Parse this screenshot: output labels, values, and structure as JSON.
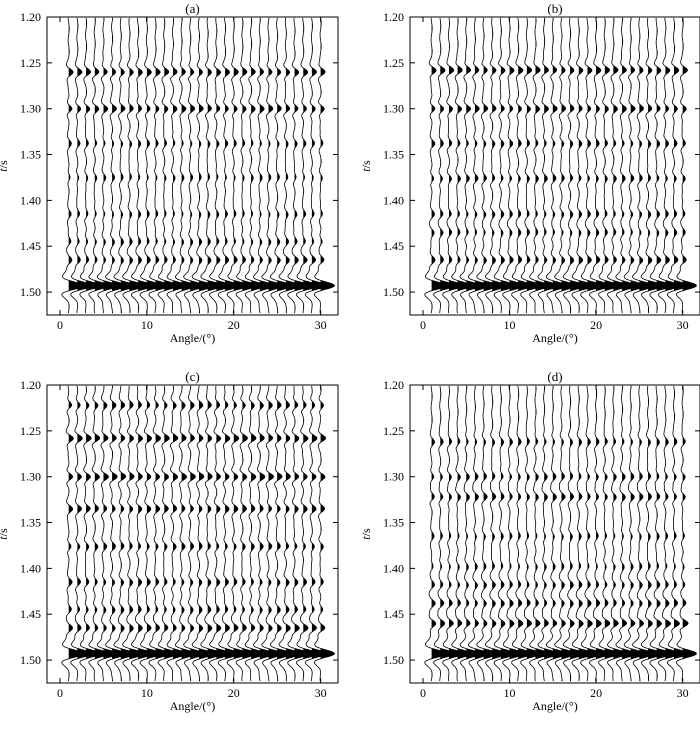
{
  "chart_data": [
    {
      "type": "seismic-wiggle",
      "panel_label": "(a)",
      "xlabel": "Angle/(°)",
      "ylabel": "t/s",
      "xlim": [
        -1.5,
        32
      ],
      "ylim": [
        1.2,
        1.525
      ],
      "xticks": [
        0,
        10,
        20,
        30
      ],
      "yticks": [
        1.2,
        1.25,
        1.3,
        1.35,
        1.4,
        1.45,
        1.5
      ],
      "traces_x": [
        1,
        2,
        3,
        4,
        5,
        6,
        7,
        8,
        9,
        10,
        11,
        12,
        13,
        14,
        15,
        16,
        17,
        18,
        19,
        20,
        21,
        22,
        23,
        24,
        25,
        26,
        27,
        28,
        29,
        30
      ],
      "events": [
        {
          "t": 1.26,
          "amp": 0.85,
          "trend": 0.0
        },
        {
          "t": 1.3,
          "amp": 0.8,
          "trend": 0.0
        },
        {
          "t": 1.338,
          "amp": 0.45,
          "trend": 0.0
        },
        {
          "t": 1.375,
          "amp": 0.4,
          "trend": 0.0
        },
        {
          "t": 1.415,
          "amp": 0.4,
          "trend": 0.0
        },
        {
          "t": 1.445,
          "amp": 0.45,
          "trend": 0.0
        },
        {
          "t": 1.465,
          "amp": 0.55,
          "trend": 0.3
        },
        {
          "t": 1.493,
          "amp": 3.0,
          "trend": 0.0
        }
      ]
    },
    {
      "type": "seismic-wiggle",
      "panel_label": "(b)",
      "xlabel": "Angle/(°)",
      "ylabel": "t/s",
      "xlim": [
        -1.5,
        32
      ],
      "ylim": [
        1.2,
        1.525
      ],
      "xticks": [
        0,
        10,
        20,
        30
      ],
      "yticks": [
        1.2,
        1.25,
        1.3,
        1.35,
        1.4,
        1.45,
        1.5
      ],
      "traces_x": [
        1,
        2,
        3,
        4,
        5,
        6,
        7,
        8,
        9,
        10,
        11,
        12,
        13,
        14,
        15,
        16,
        17,
        18,
        19,
        20,
        21,
        22,
        23,
        24,
        25,
        26,
        27,
        28,
        29,
        30
      ],
      "events": [
        {
          "t": 1.258,
          "amp": 0.9,
          "trend": 0.0
        },
        {
          "t": 1.3,
          "amp": 0.8,
          "trend": 0.0
        },
        {
          "t": 1.338,
          "amp": 0.55,
          "trend": 0.0
        },
        {
          "t": 1.376,
          "amp": 0.55,
          "trend": 0.0
        },
        {
          "t": 1.415,
          "amp": 0.5,
          "trend": 0.0
        },
        {
          "t": 1.435,
          "amp": 0.45,
          "trend": 0.0
        },
        {
          "t": 1.465,
          "amp": 0.6,
          "trend": 0.3
        },
        {
          "t": 1.493,
          "amp": 3.0,
          "trend": 0.0
        }
      ]
    },
    {
      "type": "seismic-wiggle",
      "panel_label": "(c)",
      "xlabel": "Angle/(°)",
      "ylabel": "t/s",
      "xlim": [
        -1.5,
        32
      ],
      "ylim": [
        1.2,
        1.525
      ],
      "xticks": [
        0,
        10,
        20,
        30
      ],
      "yticks": [
        1.2,
        1.25,
        1.3,
        1.35,
        1.4,
        1.45,
        1.5
      ],
      "traces_x": [
        1,
        2,
        3,
        4,
        5,
        6,
        7,
        8,
        9,
        10,
        11,
        12,
        13,
        14,
        15,
        16,
        17,
        18,
        19,
        20,
        21,
        22,
        23,
        24,
        25,
        26,
        27,
        28,
        29,
        30
      ],
      "events": [
        {
          "t": 1.222,
          "amp": 0.7,
          "trend": 0.0
        },
        {
          "t": 1.258,
          "amp": 0.95,
          "trend": 0.0
        },
        {
          "t": 1.3,
          "amp": 0.95,
          "trend": 0.0
        },
        {
          "t": 1.335,
          "amp": 0.75,
          "trend": 0.0
        },
        {
          "t": 1.376,
          "amp": 0.6,
          "trend": 0.0
        },
        {
          "t": 1.415,
          "amp": 0.6,
          "trend": 0.0
        },
        {
          "t": 1.445,
          "amp": 0.55,
          "trend": 0.0
        },
        {
          "t": 1.465,
          "amp": 0.7,
          "trend": 0.3
        },
        {
          "t": 1.493,
          "amp": 3.0,
          "trend": 0.0
        }
      ]
    },
    {
      "type": "seismic-wiggle",
      "panel_label": "(d)",
      "xlabel": "Angle/(°)",
      "ylabel": "t/s",
      "xlim": [
        -1.5,
        32
      ],
      "ylim": [
        1.2,
        1.525
      ],
      "xticks": [
        0,
        10,
        20,
        30
      ],
      "yticks": [
        1.2,
        1.25,
        1.3,
        1.35,
        1.4,
        1.45,
        1.5
      ],
      "traces_x": [
        1,
        2,
        3,
        4,
        5,
        6,
        7,
        8,
        9,
        10,
        11,
        12,
        13,
        14,
        15,
        16,
        17,
        18,
        19,
        20,
        21,
        22,
        23,
        24,
        25,
        26,
        27,
        28,
        29,
        30
      ],
      "events": [
        {
          "t": 1.262,
          "amp": 0.5,
          "trend": 0.0
        },
        {
          "t": 1.3,
          "amp": 0.55,
          "trend": 0.0
        },
        {
          "t": 1.322,
          "amp": 0.65,
          "trend": 0.0
        },
        {
          "t": 1.365,
          "amp": 0.4,
          "trend": 0.0
        },
        {
          "t": 1.398,
          "amp": 0.4,
          "trend": 0.0
        },
        {
          "t": 1.418,
          "amp": 0.55,
          "trend": 0.0
        },
        {
          "t": 1.438,
          "amp": 0.65,
          "trend": 0.0
        },
        {
          "t": 1.46,
          "amp": 0.8,
          "trend": 0.3
        },
        {
          "t": 1.493,
          "amp": 3.0,
          "trend": 0.0
        }
      ]
    }
  ]
}
